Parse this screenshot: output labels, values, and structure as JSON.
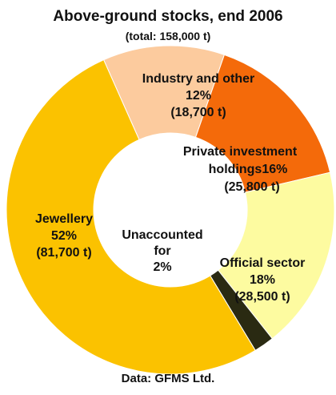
{
  "chart_data": {
    "type": "pie",
    "title": "Above-ground stocks, end 2006",
    "subtitle": "(total: 158,000 t)",
    "source": "Data: GFMS Ltd.",
    "slices": [
      {
        "name": "Industry and other",
        "percent": 12,
        "tonnes": "(18,700 t)",
        "percent_label": "12%",
        "color": "#FCCB9E"
      },
      {
        "name": "Private investment holdings",
        "percent": 16,
        "tonnes": "(25,800 t)",
        "percent_label": "16%",
        "color": "#F46A0A"
      },
      {
        "name": "Official sector",
        "percent": 18,
        "tonnes": "(28,500 t)",
        "percent_label": "18%",
        "color": "#FDFBA0"
      },
      {
        "name": "Unaccounted for",
        "percent": 2,
        "tonnes": "",
        "percent_label": "2%",
        "color": "#2A2A12"
      },
      {
        "name": "Jewellery",
        "percent": 52,
        "tonnes": "(81,700 t)",
        "percent_label": "52%",
        "color": "#FBC200"
      }
    ],
    "labels": {
      "industry": [
        "Industry and other",
        "12%",
        "(18,700 t)"
      ],
      "private": [
        "Private investment",
        "holdings16%",
        "(25,800 t)"
      ],
      "official": [
        "Official sector",
        "18%",
        "(28,500 t)"
      ],
      "unaccounted": [
        "Unaccounted",
        "for",
        "2%"
      ],
      "jewellery": [
        "Jewellery",
        "52%",
        "(81,700 t)"
      ]
    }
  }
}
